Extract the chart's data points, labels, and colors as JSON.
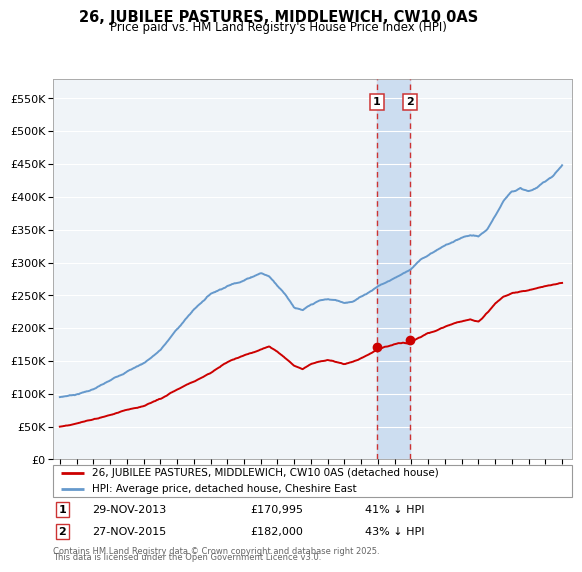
{
  "title": "26, JUBILEE PASTURES, MIDDLEWICH, CW10 0AS",
  "subtitle": "Price paid vs. HM Land Registry's House Price Index (HPI)",
  "legend_line1": "26, JUBILEE PASTURES, MIDDLEWICH, CW10 0AS (detached house)",
  "legend_line2": "HPI: Average price, detached house, Cheshire East",
  "sale1_label": "1",
  "sale1_date": "29-NOV-2013",
  "sale1_price": 170995,
  "sale1_price_str": "£170,995",
  "sale1_pct": "41% ↓ HPI",
  "sale1_year": 2013.917,
  "sale2_label": "2",
  "sale2_date": "27-NOV-2015",
  "sale2_price": 182000,
  "sale2_price_str": "£182,000",
  "sale2_pct": "43% ↓ HPI",
  "sale2_year": 2015.917,
  "footnote_line1": "Contains HM Land Registry data © Crown copyright and database right 2025.",
  "footnote_line2": "This data is licensed under the Open Government Licence v3.0.",
  "hpi_color": "#6699cc",
  "price_color": "#cc0000",
  "vline_color": "#cc3333",
  "shade_color": "#ccddf0",
  "bg_color": "#f0f4f8",
  "plot_bg": "#f0f4f8",
  "grid_color": "#ffffff",
  "ylim_min": 0,
  "ylim_max": 580000,
  "ytick_step": 50000,
  "xstart": 1995,
  "xend": 2025,
  "hpi_keypoints_x": [
    1995,
    1996,
    1997,
    1998,
    1999,
    2000,
    2001,
    2002,
    2003,
    2004,
    2005,
    2006,
    2007,
    2007.5,
    2008,
    2008.5,
    2009,
    2009.5,
    2010,
    2010.5,
    2011,
    2011.5,
    2012,
    2012.5,
    2013,
    2013.5,
    2014,
    2014.5,
    2015,
    2015.5,
    2016,
    2016.5,
    2017,
    2017.5,
    2018,
    2018.5,
    2019,
    2019.5,
    2020,
    2020.5,
    2021,
    2021.5,
    2022,
    2022.5,
    2023,
    2023.5,
    2024,
    2024.5,
    2025
  ],
  "hpi_keypoints_y": [
    95000,
    100000,
    108000,
    120000,
    135000,
    148000,
    168000,
    200000,
    230000,
    255000,
    268000,
    278000,
    290000,
    285000,
    272000,
    258000,
    240000,
    235000,
    242000,
    248000,
    250000,
    248000,
    245000,
    248000,
    255000,
    263000,
    272000,
    278000,
    285000,
    292000,
    300000,
    312000,
    320000,
    328000,
    335000,
    340000,
    345000,
    348000,
    345000,
    355000,
    375000,
    400000,
    415000,
    420000,
    415000,
    420000,
    430000,
    440000,
    455000
  ],
  "price_keypoints_x": [
    1995,
    1996,
    1997,
    1998,
    1999,
    2000,
    2001,
    2002,
    2003,
    2004,
    2005,
    2006,
    2007,
    2007.5,
    2008,
    2008.5,
    2009,
    2009.5,
    2010,
    2010.5,
    2011,
    2011.5,
    2012,
    2012.5,
    2013,
    2013.5,
    2013.917,
    2014,
    2014.5,
    2015,
    2015.5,
    2015.917,
    2016,
    2016.5,
    2017,
    2017.5,
    2018,
    2018.5,
    2019,
    2019.5,
    2020,
    2020.5,
    2021,
    2021.5,
    2022,
    2022.5,
    2023,
    2023.5,
    2024,
    2024.5,
    2025
  ],
  "price_keypoints_y": [
    50000,
    54000,
    60000,
    67000,
    75000,
    82000,
    92000,
    105000,
    118000,
    132000,
    148000,
    158000,
    168000,
    172000,
    165000,
    155000,
    145000,
    140000,
    148000,
    152000,
    155000,
    152000,
    148000,
    152000,
    158000,
    165000,
    170995,
    172000,
    176000,
    180000,
    182500,
    182000,
    185000,
    192000,
    198000,
    202000,
    207000,
    212000,
    215000,
    218000,
    215000,
    228000,
    242000,
    252000,
    258000,
    260000,
    262000,
    265000,
    268000,
    270000,
    272000
  ]
}
